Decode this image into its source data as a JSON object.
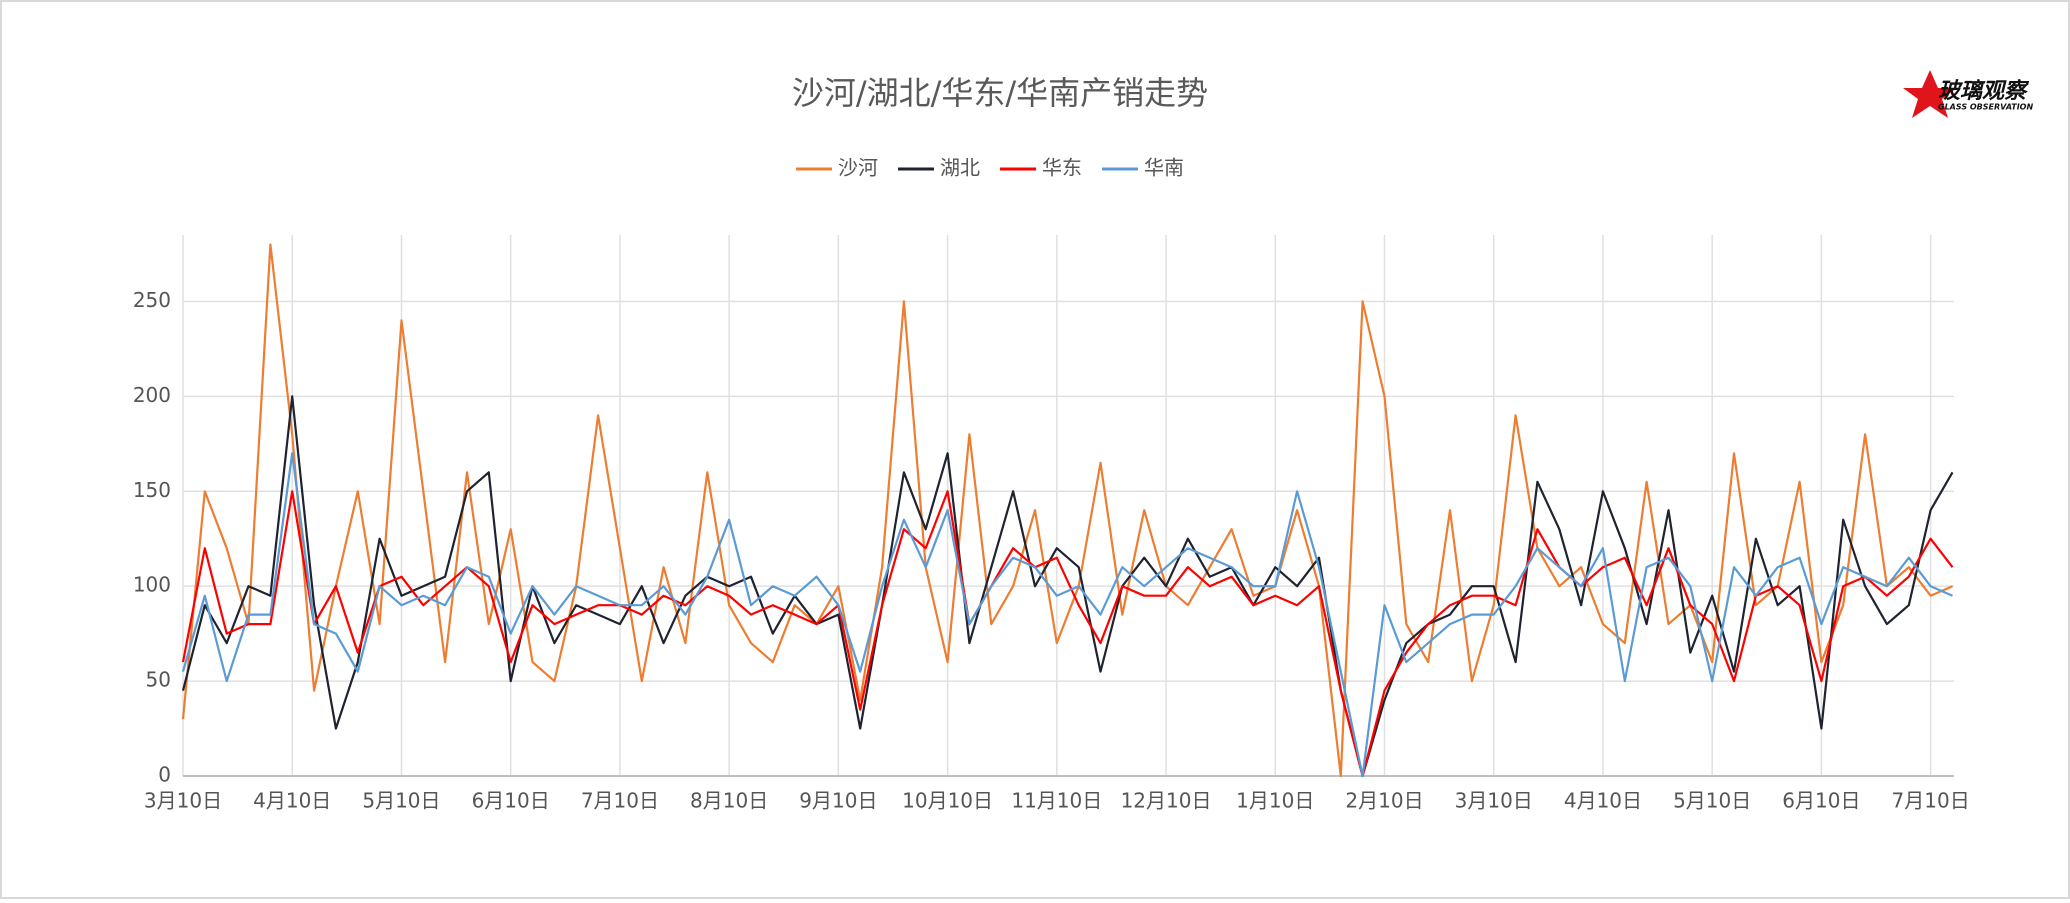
{
  "logo": {
    "text": "玻璃观察",
    "subtitle": "GLASS OBSERVATION"
  },
  "chart_data": {
    "type": "line",
    "title": "沙河/湖北/华东/华南产销走势",
    "categories": [
      "3月10日",
      null,
      null,
      null,
      null,
      "4月10日",
      null,
      null,
      null,
      null,
      "5月10日",
      null,
      null,
      null,
      null,
      "6月10日",
      null,
      null,
      null,
      null,
      "7月10日",
      null,
      null,
      null,
      null,
      "8月10日",
      null,
      null,
      null,
      null,
      "9月10日",
      null,
      null,
      null,
      null,
      "10月10日",
      null,
      null,
      null,
      null,
      "11月10日",
      null,
      null,
      null,
      null,
      "12月10日",
      null,
      null,
      null,
      null,
      "1月10日",
      null,
      null,
      null,
      null,
      "2月10日",
      null,
      null,
      null,
      null,
      "3月10日",
      null,
      null,
      null,
      null,
      "4月10日",
      null,
      null,
      null,
      null,
      "5月10日",
      null,
      null,
      null,
      null,
      "6月10日",
      null,
      null,
      null,
      null,
      "7月10日",
      null
    ],
    "series": [
      {
        "name": "沙河",
        "color": "#ed7d31",
        "values": [
          30,
          150,
          120,
          80,
          280,
          180,
          45,
          100,
          150,
          80,
          240,
          150,
          60,
          160,
          80,
          130,
          60,
          50,
          100,
          190,
          120,
          50,
          110,
          70,
          160,
          90,
          70,
          60,
          90,
          80,
          100,
          40,
          110,
          250,
          110,
          60,
          180,
          80,
          100,
          140,
          70,
          100,
          165,
          85,
          140,
          100,
          90,
          110,
          130,
          95,
          100,
          140,
          100,
          0,
          250,
          200,
          80,
          60,
          140,
          50,
          90,
          190,
          120,
          100,
          110,
          80,
          70,
          155,
          80,
          90,
          60,
          170,
          90,
          100,
          155,
          60,
          90,
          180,
          100,
          110,
          95,
          100
        ]
      },
      {
        "name": "湖北",
        "color": "#1f2330",
        "values": [
          45,
          90,
          70,
          100,
          95,
          200,
          90,
          25,
          60,
          125,
          95,
          100,
          105,
          150,
          160,
          50,
          100,
          70,
          90,
          85,
          80,
          100,
          70,
          95,
          105,
          100,
          105,
          75,
          95,
          80,
          85,
          25,
          90,
          160,
          130,
          170,
          70,
          110,
          150,
          100,
          120,
          110,
          55,
          100,
          115,
          100,
          125,
          105,
          110,
          90,
          110,
          100,
          115,
          45,
          0,
          40,
          70,
          80,
          85,
          100,
          100,
          60,
          155,
          130,
          90,
          150,
          120,
          80,
          140,
          65,
          95,
          55,
          125,
          90,
          100,
          25,
          135,
          100,
          80,
          90,
          140,
          160
        ]
      },
      {
        "name": "华东",
        "color": "#ff0000",
        "values": [
          60,
          120,
          75,
          80,
          80,
          150,
          80,
          100,
          65,
          100,
          105,
          90,
          100,
          110,
          100,
          60,
          90,
          80,
          85,
          90,
          90,
          85,
          95,
          90,
          100,
          95,
          85,
          90,
          85,
          80,
          90,
          35,
          90,
          130,
          120,
          150,
          80,
          100,
          120,
          110,
          115,
          90,
          70,
          100,
          95,
          95,
          110,
          100,
          105,
          90,
          95,
          90,
          100,
          45,
          0,
          45,
          65,
          80,
          90,
          95,
          95,
          90,
          130,
          110,
          100,
          110,
          115,
          90,
          120,
          90,
          80,
          50,
          95,
          100,
          90,
          50,
          100,
          105,
          95,
          105,
          125,
          110
        ]
      },
      {
        "name": "华南",
        "color": "#5b9bd5",
        "values": [
          55,
          95,
          50,
          85,
          85,
          170,
          80,
          75,
          55,
          100,
          90,
          95,
          90,
          110,
          105,
          75,
          100,
          85,
          100,
          95,
          90,
          90,
          100,
          85,
          105,
          135,
          90,
          100,
          95,
          105,
          90,
          55,
          100,
          135,
          110,
          140,
          80,
          100,
          115,
          110,
          95,
          100,
          85,
          110,
          100,
          110,
          120,
          115,
          110,
          100,
          100,
          150,
          110,
          55,
          0,
          90,
          60,
          70,
          80,
          85,
          85,
          100,
          120,
          110,
          100,
          120,
          50,
          110,
          115,
          100,
          50,
          110,
          95,
          110,
          115,
          80,
          110,
          105,
          100,
          115,
          100,
          95
        ]
      }
    ],
    "ylim": [
      0,
      285
    ],
    "yticks": [
      0,
      50,
      100,
      150,
      200,
      250
    ],
    "grid": true,
    "legend": "top"
  }
}
